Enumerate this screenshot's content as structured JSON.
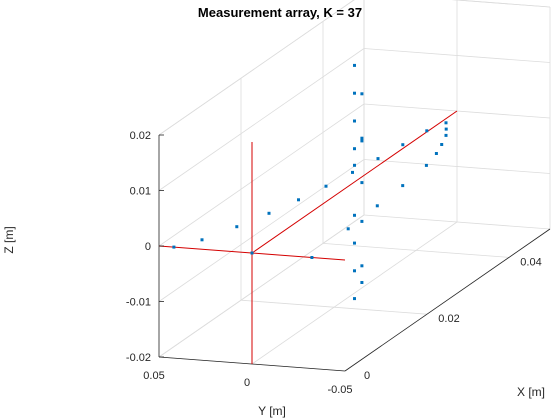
{
  "chart_data": {
    "type": "scatter",
    "title": "Measurement array, K = 37",
    "xlabel": "X [m]",
    "ylabel": "Y [m]",
    "zlabel": "Z [m]",
    "xlim": [
      0,
      0.05
    ],
    "ylim": [
      -0.05,
      0.05
    ],
    "zlim": [
      -0.02,
      0.02
    ],
    "xticks": [
      "0",
      "0.02",
      "0.04"
    ],
    "yticks": [
      "0.05",
      "0",
      "-0.05"
    ],
    "zticks": [
      "0.02",
      "0.01",
      "0",
      "-0.01",
      "-0.02"
    ],
    "grid": true,
    "marker_color": "#0072bd",
    "axis_line_color": "#d40000",
    "points": [
      {
        "x": 0.0,
        "y": 0.0,
        "z": 0.0
      },
      {
        "x": 0.0,
        "y": 0.042,
        "z": 0.0
      },
      {
        "x": 0.003,
        "y": 0.0335,
        "z": 0.0
      },
      {
        "x": 0.008,
        "y": 0.0258,
        "z": 0.0
      },
      {
        "x": 0.013,
        "y": 0.0195,
        "z": 0.0
      },
      {
        "x": 0.018,
        "y": 0.0147,
        "z": 0.0
      },
      {
        "x": 0.023,
        "y": 0.0109,
        "z": 0.0
      },
      {
        "x": 0.028,
        "y": 0.0077,
        "z": 0.0
      },
      {
        "x": 0.033,
        "y": 0.005,
        "z": 0.0
      },
      {
        "x": 0.038,
        "y": 0.0027,
        "z": 0.0
      },
      {
        "x": 0.043,
        "y": 0.0008,
        "z": 0.0
      },
      {
        "x": 0.046,
        "y": -0.0029,
        "z": 0.0
      },
      {
        "x": 0.044,
        "y": -0.0074,
        "z": 0.0
      },
      {
        "x": 0.042,
        "y": -0.0117,
        "z": 0.0
      },
      {
        "x": 0.039,
        "y": -0.016,
        "z": 0.0
      },
      {
        "x": 0.036,
        "y": -0.0198,
        "z": 0.0
      },
      {
        "x": 0.032,
        "y": -0.0232,
        "z": 0.0
      },
      {
        "x": 0.025,
        "y": -0.0259,
        "z": 0.0
      },
      {
        "x": 0.018,
        "y": -0.0277,
        "z": 0.0
      },
      {
        "x": 0.01,
        "y": -0.0297,
        "z": 0.0
      },
      {
        "x": 0.0,
        "y": -0.0322,
        "z": 0.0
      },
      {
        "x": 0.025,
        "y": 0.0,
        "z": 0.003
      },
      {
        "x": 0.025,
        "y": 0.0,
        "z": 0.006
      },
      {
        "x": 0.025,
        "y": 0.0,
        "z": 0.011
      },
      {
        "x": 0.025,
        "y": 0.0,
        "z": 0.016
      },
      {
        "x": 0.025,
        "y": 0.0,
        "z": 0.021
      },
      {
        "x": 0.025,
        "y": 0.0,
        "z": -0.006
      },
      {
        "x": 0.025,
        "y": 0.0,
        "z": -0.011
      },
      {
        "x": 0.025,
        "y": 0.0,
        "z": -0.016
      },
      {
        "x": 0.025,
        "y": 0.0,
        "z": -0.021
      },
      {
        "x": 0.025,
        "y": -0.004,
        "z": 0.008
      },
      {
        "x": 0.025,
        "y": -0.004,
        "z": 0.016
      },
      {
        "x": 0.025,
        "y": -0.004,
        "z": -0.007
      },
      {
        "x": 0.025,
        "y": -0.004,
        "z": -0.018
      },
      {
        "x": 0.025,
        "y": -0.004,
        "z": 0.0
      },
      {
        "x": 0.025,
        "y": -0.004,
        "z": 0.0075
      },
      {
        "x": 0.025,
        "y": -0.004,
        "z": -0.015
      }
    ]
  }
}
